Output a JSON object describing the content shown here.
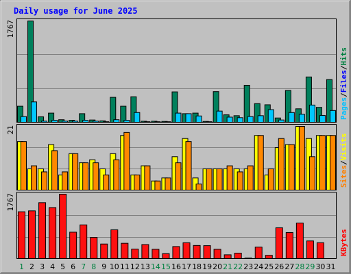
{
  "chart_data": {
    "type": "bar",
    "title": "Daily usage for June 2025",
    "categories": [
      "1",
      "2",
      "3",
      "4",
      "5",
      "6",
      "7",
      "8",
      "9",
      "10",
      "11",
      "12",
      "13",
      "14",
      "15",
      "16",
      "17",
      "18",
      "19",
      "20",
      "21",
      "22",
      "23",
      "24",
      "25",
      "26",
      "27",
      "28",
      "29",
      "30",
      "31"
    ],
    "weekend_days": [
      "1",
      "7",
      "8",
      "14",
      "15",
      "21",
      "22",
      "28",
      "29"
    ],
    "panels": [
      {
        "id": "hits_files_pages",
        "ymax_label": "1767",
        "ylim": [
          0,
          1767
        ],
        "legend": [
          {
            "label": "Pages",
            "color": "#00c0ff"
          },
          {
            "label": "/",
            "color": "#000000"
          },
          {
            "label": "Files",
            "color": "#0000ff"
          },
          {
            "label": "/",
            "color": "#000000"
          },
          {
            "label": "Hits",
            "color": "#008040"
          }
        ],
        "series": [
          {
            "name": "Hits",
            "color": "#00805c",
            "values": [
              280,
              1765,
              95,
              160,
              45,
              35,
              150,
              40,
              25,
              435,
              280,
              445,
              18,
              18,
              15,
              530,
              150,
              160,
              15,
              535,
              130,
              115,
              645,
              325,
              305,
              75,
              555,
              235,
              790,
              260,
              745
            ]
          },
          {
            "name": "Files",
            "color": "#00c8ff",
            "values": [
              100,
              355,
              20,
              35,
              20,
              20,
              35,
              20,
              10,
              45,
              35,
              170,
              10,
              10,
              10,
              160,
              150,
              110,
              10,
              195,
              90,
              80,
              100,
              115,
              220,
              40,
              170,
              140,
              300,
              120,
              205
            ]
          }
        ]
      },
      {
        "id": "visits_sites",
        "ymax_label": "21",
        "ylim": [
          0,
          21
        ],
        "legend": [
          {
            "label": "Sites",
            "color": "#ff8000"
          },
          {
            "label": "/",
            "color": "#000000"
          },
          {
            "label": "Visits",
            "color": "#ffff00"
          }
        ],
        "series": [
          {
            "name": "Visits",
            "color": "#ffff00",
            "values": [
              16,
              7,
              7,
              15,
              5,
              12,
              9,
              10,
              7,
              12,
              18,
              5,
              8,
              3,
              4,
              11,
              17,
              4,
              7,
              7,
              7,
              7,
              7,
              18,
              5,
              14,
              15,
              21,
              17,
              18,
              18
            ]
          },
          {
            "name": "Sites",
            "color": "#ff8800",
            "values": [
              16,
              8,
              6,
              13,
              6,
              12,
              9,
              9,
              5,
              10,
              19,
              5,
              8,
              3,
              4,
              9,
              16,
              2,
              7,
              7,
              8,
              6,
              8,
              18,
              7,
              17,
              15,
              21,
              11,
              18,
              18
            ]
          }
        ]
      },
      {
        "id": "kbytes",
        "ymax_label": "1767",
        "ylim": [
          0,
          1767
        ],
        "legend": [
          {
            "label": "KBytes",
            "color": "#ff0000"
          }
        ],
        "series": [
          {
            "name": "KBytes",
            "color": "#ff1010",
            "values": [
              1285,
              1310,
              1535,
              1400,
              1775,
              725,
              925,
              580,
              400,
              790,
              420,
              260,
              385,
              255,
              135,
              330,
              435,
              360,
              355,
              255,
              105,
              150,
              15,
              315,
              90,
              845,
              715,
              975,
              485,
              435,
              0
            ]
          }
        ]
      }
    ]
  }
}
